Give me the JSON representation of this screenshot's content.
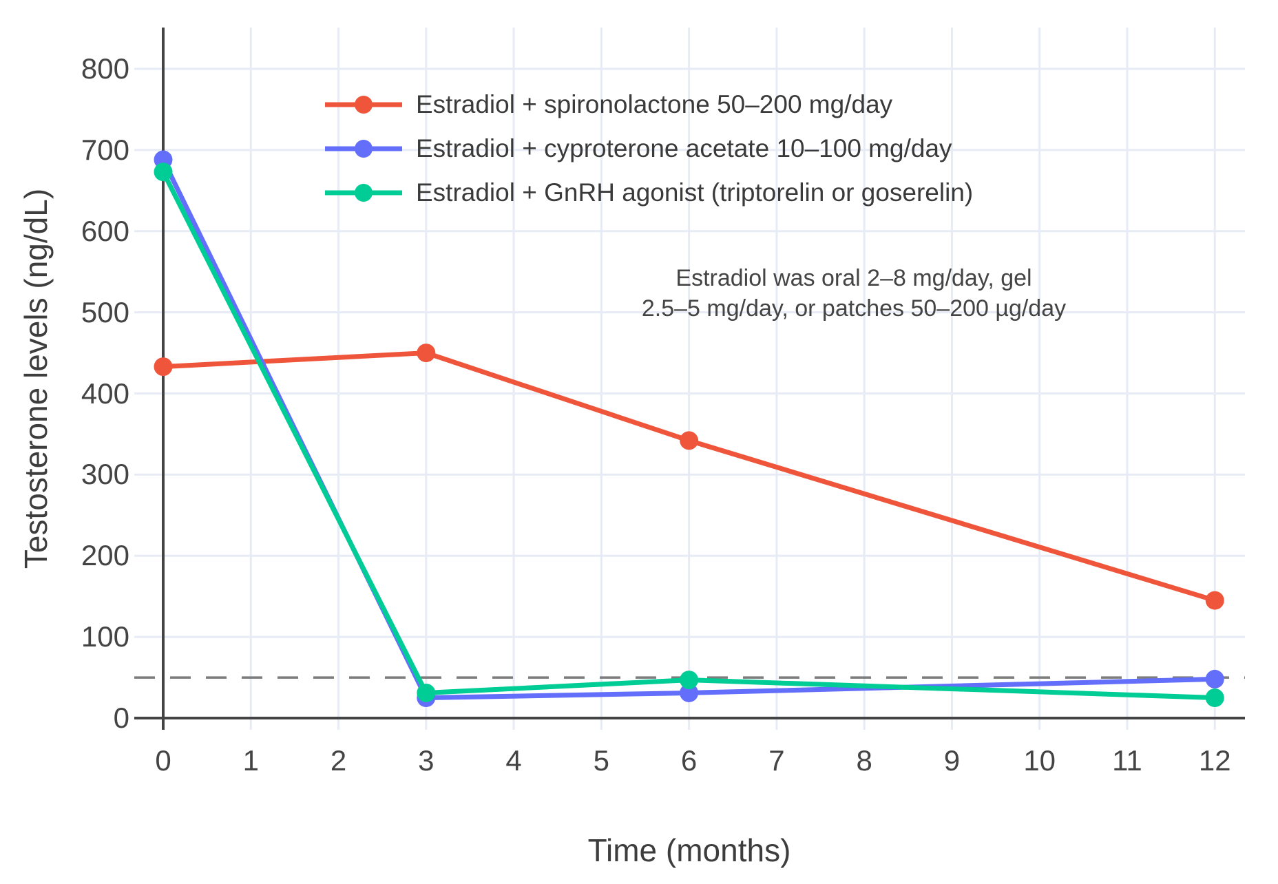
{
  "chart_data": {
    "type": "line",
    "title": "",
    "xlabel": "Time (months)",
    "ylabel": "Testosterone levels (ng/dL)",
    "x": [
      0,
      3,
      6,
      12
    ],
    "x_ticks": [
      0,
      1,
      2,
      3,
      4,
      5,
      6,
      7,
      8,
      9,
      10,
      11,
      12
    ],
    "y_ticks": [
      0,
      100,
      200,
      300,
      400,
      500,
      600,
      700,
      800
    ],
    "xlim": [
      -0.33,
      12.34
    ],
    "ylim": [
      -15,
      851
    ],
    "grid": true,
    "legend_position": "top-left-inside",
    "series": [
      {
        "name": "spironolactone",
        "label": "Estradiol + spironolactone 50–200 mg/day",
        "color": "#EF553B",
        "values": [
          433,
          450,
          342,
          145
        ]
      },
      {
        "name": "cyproterone-acetate",
        "label": "Estradiol + cyproterone acetate 10–100 mg/day",
        "color": "#636EFA",
        "values": [
          688,
          25,
          31,
          48
        ]
      },
      {
        "name": "gnrh-agonist",
        "label": "Estradiol + GnRH agonist (triptorelin or goserelin)",
        "color": "#00CC96",
        "values": [
          673,
          31,
          47,
          25
        ]
      }
    ],
    "reference_line": {
      "y": 50,
      "style": "dashed",
      "color": "#7d7d7d"
    },
    "annotation": {
      "line1": "Estradiol was oral 2–8 mg/day, gel",
      "line2": "2.5–5 mg/day, or patches 50–200 µg/day"
    }
  },
  "colors": {
    "background": "#ffffff",
    "grid": "#E6EBF5",
    "zeroline": "#444444",
    "text": "#444444"
  }
}
